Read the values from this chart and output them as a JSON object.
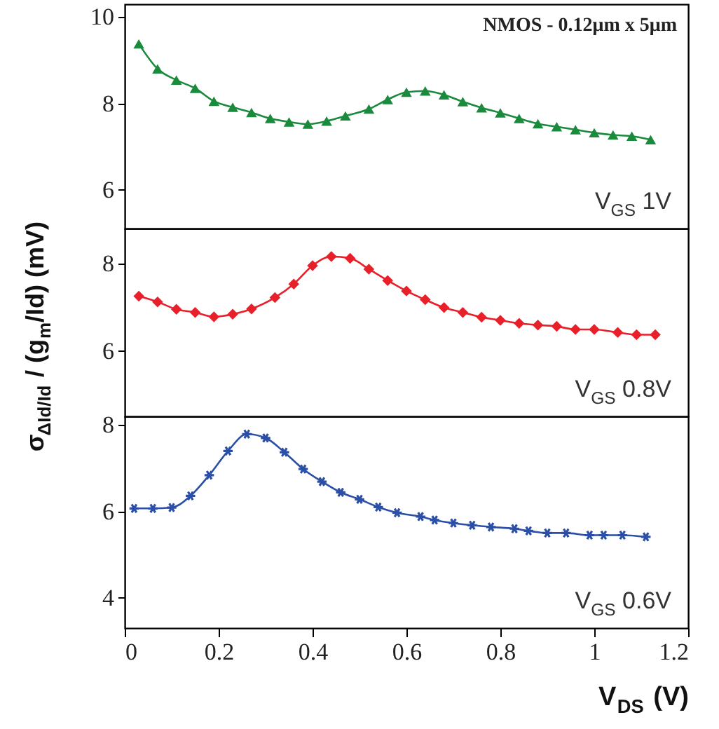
{
  "chart_data": [
    {
      "type": "line",
      "title": "NMOS - 0.12μm x 5μm",
      "annotations": [
        "V$_{GS}$ 1V"
      ],
      "xlim": [
        0,
        1.2
      ],
      "ylim": [
        5.1,
        10.3
      ],
      "yticks": [
        6,
        8,
        10
      ],
      "tick_labels": "y",
      "grid": false,
      "marker": "triangle",
      "line_style": "solid",
      "series": [
        {
          "color": "#1a8a3c",
          "x": [
            0.03,
            0.07,
            0.11,
            0.15,
            0.19,
            0.23,
            0.27,
            0.31,
            0.35,
            0.39,
            0.43,
            0.47,
            0.52,
            0.56,
            0.6,
            0.64,
            0.68,
            0.72,
            0.76,
            0.8,
            0.84,
            0.88,
            0.92,
            0.96,
            1.0,
            1.04,
            1.08,
            1.12
          ],
          "values": [
            9.38,
            8.8,
            8.54,
            8.35,
            8.05,
            7.91,
            7.79,
            7.65,
            7.57,
            7.52,
            7.59,
            7.71,
            7.87,
            8.09,
            8.26,
            8.29,
            8.2,
            8.04,
            7.9,
            7.78,
            7.65,
            7.53,
            7.46,
            7.39,
            7.32,
            7.27,
            7.24,
            7.16
          ]
        }
      ]
    },
    {
      "type": "line",
      "ylabel": "σ$_{ΔId/Id}$ / (g$_{m}$/Id) (mV)",
      "annotations": [
        "V$_{GS}$ 0.8V"
      ],
      "xlim": [
        0,
        1.2
      ],
      "ylim": [
        4.5,
        8.8
      ],
      "yticks": [
        6,
        8
      ],
      "tick_labels": "y",
      "grid": false,
      "marker": "diamond",
      "line_style": "solid",
      "series": [
        {
          "color": "#e8202a",
          "x": [
            0.03,
            0.07,
            0.11,
            0.15,
            0.19,
            0.23,
            0.27,
            0.32,
            0.36,
            0.4,
            0.44,
            0.48,
            0.52,
            0.56,
            0.6,
            0.64,
            0.68,
            0.72,
            0.76,
            0.8,
            0.84,
            0.88,
            0.92,
            0.96,
            1.0,
            1.05,
            1.09,
            1.13
          ],
          "values": [
            7.25,
            7.12,
            6.95,
            6.88,
            6.78,
            6.84,
            6.96,
            7.22,
            7.53,
            7.95,
            8.16,
            8.12,
            7.87,
            7.61,
            7.37,
            7.17,
            6.99,
            6.88,
            6.77,
            6.7,
            6.63,
            6.59,
            6.56,
            6.49,
            6.49,
            6.42,
            6.37,
            6.37
          ]
        }
      ]
    },
    {
      "type": "line",
      "xlabel": "V$_{DS}$ (V)",
      "annotations": [
        "V$_{GS}$ 0.6V"
      ],
      "xlim": [
        0,
        1.2
      ],
      "xticks": [
        0,
        0.2,
        0.4,
        0.6,
        0.8,
        1,
        1.2
      ],
      "ylim": [
        3.3,
        8.2
      ],
      "yticks": [
        4,
        6,
        8
      ],
      "grid": false,
      "marker": "cross",
      "line_style": "solid",
      "series": [
        {
          "color": "#2b4fa6",
          "x": [
            0.02,
            0.06,
            0.1,
            0.14,
            0.18,
            0.22,
            0.26,
            0.3,
            0.34,
            0.38,
            0.42,
            0.46,
            0.5,
            0.54,
            0.58,
            0.63,
            0.66,
            0.7,
            0.74,
            0.78,
            0.83,
            0.86,
            0.9,
            0.94,
            0.99,
            1.02,
            1.06,
            1.11
          ],
          "values": [
            6.07,
            6.07,
            6.09,
            6.36,
            6.84,
            7.4,
            7.79,
            7.7,
            7.37,
            6.98,
            6.69,
            6.44,
            6.28,
            6.1,
            5.97,
            5.88,
            5.8,
            5.73,
            5.68,
            5.64,
            5.6,
            5.55,
            5.5,
            5.5,
            5.45,
            5.45,
            5.45,
            5.41
          ]
        }
      ]
    }
  ]
}
